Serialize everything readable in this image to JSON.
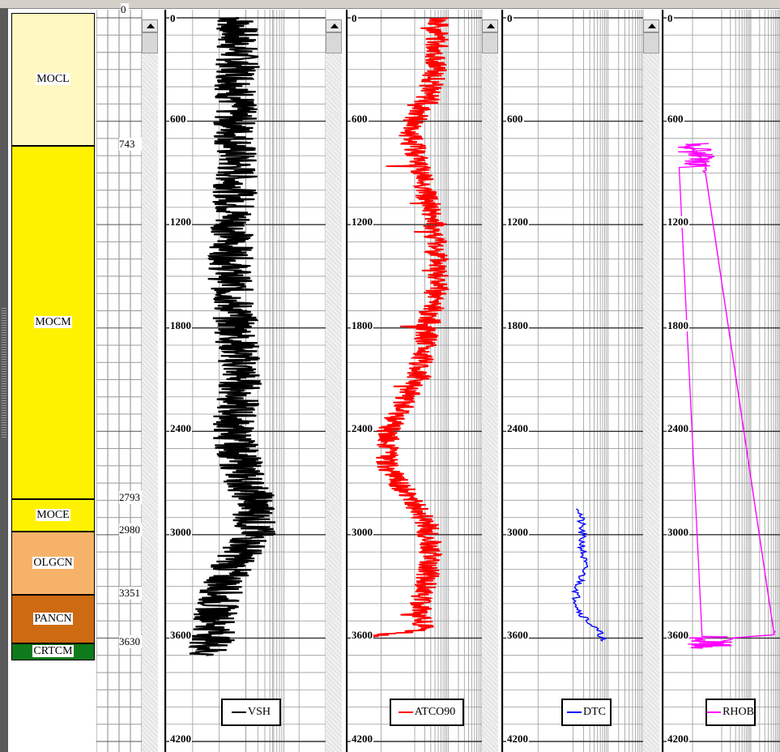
{
  "formation_track": {
    "formations": [
      {
        "name": "MOCL",
        "color": "#fff8c0",
        "top_depth": 0,
        "base_depth": 743
      },
      {
        "name": "MOCM",
        "color": "#fff200",
        "top_depth": 743,
        "base_depth": 2793
      },
      {
        "name": "MOCE",
        "color": "#fff200",
        "top_depth": 2793,
        "base_depth": 2980
      },
      {
        "name": "OLGCN",
        "color": "#f7b26a",
        "top_depth": 2980,
        "base_depth": 3351
      },
      {
        "name": "PANCN",
        "color": "#cd6a12",
        "top_depth": 3351,
        "base_depth": 3630
      },
      {
        "name": "CRTCM",
        "color": "#0f7a1c",
        "top_depth": 3630,
        "base_depth": 3730
      }
    ]
  },
  "depth_column": {
    "labels": [
      "0",
      "743",
      "2793",
      "2980",
      "3351",
      "3630"
    ]
  },
  "depth_axis": {
    "ticks": [
      "0",
      "600",
      "1200",
      "1800",
      "2400",
      "3000",
      "3600",
      "4200"
    ]
  },
  "tracks": [
    {
      "legend": "VSH",
      "color": "#000000"
    },
    {
      "legend": "ATCO90",
      "color": "#ff0000"
    },
    {
      "legend": "DTC",
      "color": "#0000ff"
    },
    {
      "legend": "RHOB",
      "color": "#ff00ff"
    }
  ],
  "chart_data": {
    "type": "line",
    "y_axis": "depth",
    "ylim": [
      0,
      4200
    ],
    "y_inverted": true,
    "ticks": [
      0,
      600,
      1200,
      1800,
      2400,
      3000,
      3600,
      4200
    ],
    "series": [
      {
        "name": "VSH",
        "color": "#000000",
        "depth_range": [
          0,
          3700
        ],
        "points": [
          [
            0,
            0.44
          ],
          [
            300,
            0.45
          ],
          [
            600,
            0.43
          ],
          [
            900,
            0.44
          ],
          [
            1200,
            0.42
          ],
          [
            1500,
            0.4
          ],
          [
            1800,
            0.44
          ],
          [
            2100,
            0.47
          ],
          [
            2400,
            0.42
          ],
          [
            2700,
            0.5
          ],
          [
            2800,
            0.56
          ],
          [
            3000,
            0.55
          ],
          [
            3200,
            0.4
          ],
          [
            3400,
            0.32
          ],
          [
            3600,
            0.3
          ],
          [
            3700,
            0.25
          ]
        ]
      },
      {
        "name": "ATCO90",
        "color": "#ff0000",
        "depth_range": [
          0,
          3600
        ],
        "points": [
          [
            0,
            0.68
          ],
          [
            300,
            0.66
          ],
          [
            500,
            0.58
          ],
          [
            650,
            0.45
          ],
          [
            800,
            0.52
          ],
          [
            1000,
            0.58
          ],
          [
            1200,
            0.65
          ],
          [
            1500,
            0.68
          ],
          [
            1800,
            0.6
          ],
          [
            2100,
            0.52
          ],
          [
            2400,
            0.3
          ],
          [
            2600,
            0.3
          ],
          [
            2950,
            0.6
          ],
          [
            3150,
            0.62
          ],
          [
            3400,
            0.55
          ],
          [
            3550,
            0.56
          ],
          [
            3600,
            0.12
          ]
        ]
      },
      {
        "name": "DTC",
        "color": "#0000ff",
        "depth_range": [
          2850,
          3620
        ],
        "points": [
          [
            2850,
            0.55
          ],
          [
            3000,
            0.56
          ],
          [
            3200,
            0.58
          ],
          [
            3350,
            0.52
          ],
          [
            3450,
            0.55
          ],
          [
            3600,
            0.72
          ],
          [
            3620,
            0.68
          ]
        ]
      },
      {
        "name": "RHOB",
        "color": "#ff00ff",
        "depth_range": [
          730,
          3650
        ],
        "points": [
          [
            730,
            0.2
          ],
          [
            800,
            0.3
          ],
          [
            850,
            0.35
          ],
          [
            3580,
            0.95
          ],
          [
            3600,
            0.6
          ],
          [
            3640,
            0.4
          ]
        ]
      }
    ]
  }
}
